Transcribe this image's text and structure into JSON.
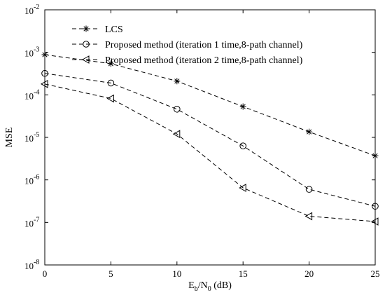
{
  "chart_data": {
    "type": "line",
    "xlabel": {
      "main": "E",
      "sub1": "b",
      "mid": "/N",
      "sub2": "0",
      "unit": " (dB)"
    },
    "ylabel": "MSE",
    "x": [
      0,
      5,
      10,
      15,
      20,
      25
    ],
    "xlim": [
      0,
      25
    ],
    "xticks": [
      "0",
      "5",
      "10",
      "15",
      "20",
      "25"
    ],
    "yscale": "log",
    "ylim": [
      1e-08,
      0.01
    ],
    "yticks": [
      {
        "base": "10",
        "exp": "-8"
      },
      {
        "base": "10",
        "exp": "-7"
      },
      {
        "base": "10",
        "exp": "-6"
      },
      {
        "base": "10",
        "exp": "-5"
      },
      {
        "base": "10",
        "exp": "-4"
      },
      {
        "base": "10",
        "exp": "-3"
      },
      {
        "base": "10",
        "exp": "-2"
      }
    ],
    "grid": false,
    "legend_position": "top-left",
    "series": [
      {
        "name": "LCS",
        "marker": "asterisk",
        "line": "dashed",
        "color": "#000000",
        "values": [
          0.00088,
          0.00054,
          0.00021,
          5.3e-05,
          1.35e-05,
          3.7e-06
        ]
      },
      {
        "name": "Proposed method (iteration 1 time,8-path channel)",
        "marker": "circle",
        "line": "dashed",
        "color": "#000000",
        "values": [
          0.00032,
          0.00019,
          4.6e-05,
          6.3e-06,
          6e-07,
          2.4e-07
        ]
      },
      {
        "name": "Proposed method (iteration 2 time,8-path channel)",
        "marker": "triangle-left",
        "line": "dashed",
        "color": "#000000",
        "values": [
          0.00018,
          8.2e-05,
          1.2e-05,
          6.5e-07,
          1.4e-07,
          1.05e-07
        ]
      }
    ]
  }
}
